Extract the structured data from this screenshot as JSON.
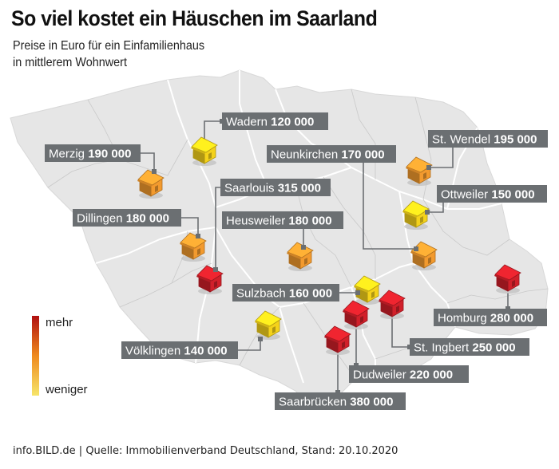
{
  "title": "So viel kostet ein Häuschen im Saarland",
  "subtitle_line1": "Preise in Euro für ein Einfamilienhaus",
  "subtitle_line2": "in mittlerem Wohnwert",
  "legend": {
    "high": "mehr",
    "low": "weniger"
  },
  "footer": "info.BILD.de | Quelle: Immobilienverband Deutschland, Stand: 20.10.2020",
  "colors": {
    "map_fill": "#e6e6e6",
    "map_border": "#ffffff",
    "label_bg": "#6b6f72",
    "leader": "#6b6f72",
    "house_red": "#d1202a",
    "house_orange": "#f29a2e",
    "house_yellow": "#f4d21a"
  },
  "places": [
    {
      "name": "Wadern",
      "price": "120 000",
      "value": 120000,
      "tier": "yellow"
    },
    {
      "name": "Merzig",
      "price": "190 000",
      "value": 190000,
      "tier": "orange"
    },
    {
      "name": "Neunkirchen",
      "price": "170 000",
      "value": 170000,
      "tier": "orange"
    },
    {
      "name": "St. Wendel",
      "price": "195 000",
      "value": 195000,
      "tier": "orange"
    },
    {
      "name": "Saarlouis",
      "price": "315 000",
      "value": 315000,
      "tier": "red"
    },
    {
      "name": "Ottweiler",
      "price": "150 000",
      "value": 150000,
      "tier": "yellow"
    },
    {
      "name": "Dillingen",
      "price": "180 000",
      "value": 180000,
      "tier": "orange"
    },
    {
      "name": "Heusweiler",
      "price": "180 000",
      "value": 180000,
      "tier": "orange"
    },
    {
      "name": "Sulzbach",
      "price": "160 000",
      "value": 160000,
      "tier": "yellow"
    },
    {
      "name": "Homburg",
      "price": "280 000",
      "value": 280000,
      "tier": "red"
    },
    {
      "name": "Völklingen",
      "price": "140 000",
      "value": 140000,
      "tier": "yellow"
    },
    {
      "name": "St. Ingbert",
      "price": "250 000",
      "value": 250000,
      "tier": "red"
    },
    {
      "name": "Dudweiler",
      "price": "220 000",
      "value": 220000,
      "tier": "red"
    },
    {
      "name": "Saarbrücken",
      "price": "380 000",
      "value": 380000,
      "tier": "red"
    }
  ]
}
